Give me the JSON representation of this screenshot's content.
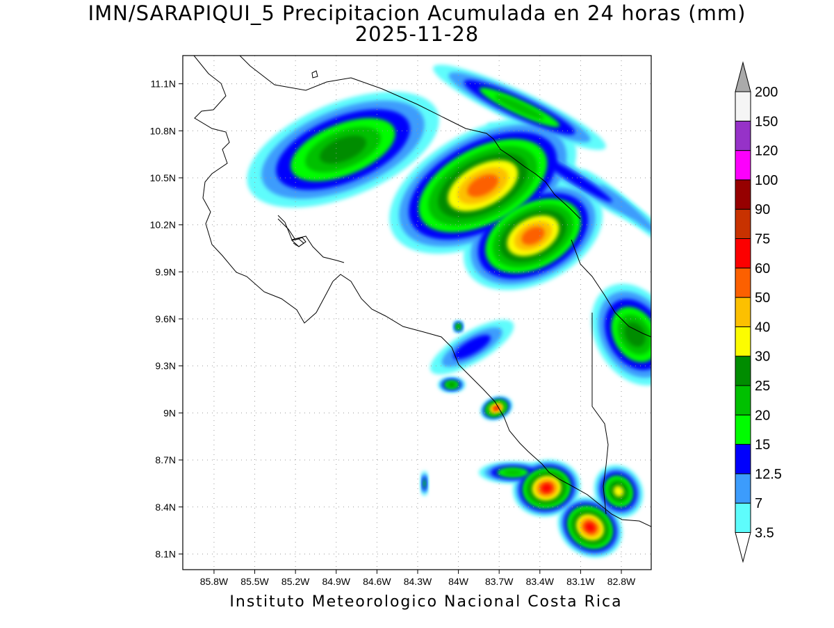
{
  "title_line1": "IMN/SARAPIQUI_5 Precipitacion Acumulada en 24 horas (mm)",
  "title_line2": "2025-11-28",
  "footer": "Instituto Meteorologico Nacional Costa Rica",
  "map": {
    "lon_range": [
      -86.03,
      -82.58
    ],
    "lat_range": [
      8.0,
      11.28
    ],
    "lon_ticks": [
      {
        "value": -85.8,
        "label": "85.8W"
      },
      {
        "value": -85.5,
        "label": "85.5W"
      },
      {
        "value": -85.2,
        "label": "85.2W"
      },
      {
        "value": -84.9,
        "label": "84.9W"
      },
      {
        "value": -84.6,
        "label": "84.6W"
      },
      {
        "value": -84.3,
        "label": "84.3W"
      },
      {
        "value": -84.0,
        "label": "84W"
      },
      {
        "value": -83.7,
        "label": "83.7W"
      },
      {
        "value": -83.4,
        "label": "83.4W"
      },
      {
        "value": -83.1,
        "label": "83.1W"
      },
      {
        "value": -82.8,
        "label": "82.8W"
      }
    ],
    "lat_ticks": [
      {
        "value": 11.1,
        "label": "11.1N"
      },
      {
        "value": 10.8,
        "label": "10.8N"
      },
      {
        "value": 10.5,
        "label": "10.5N"
      },
      {
        "value": 10.2,
        "label": "10.2N"
      },
      {
        "value": 9.9,
        "label": "9.9N"
      },
      {
        "value": 9.6,
        "label": "9.6N"
      },
      {
        "value": 9.3,
        "label": "9.3N"
      },
      {
        "value": 9.0,
        "label": "9N"
      },
      {
        "value": 8.7,
        "label": "8.7N"
      },
      {
        "value": 8.4,
        "label": "8.4N"
      },
      {
        "value": 8.1,
        "label": "8.1N"
      }
    ],
    "grid": true
  },
  "colorbar": {
    "labels": [
      "3.5",
      "7",
      "12.5",
      "15",
      "20",
      "25",
      "30",
      "40",
      "50",
      "60",
      "75",
      "90",
      "100",
      "120",
      "150",
      "200"
    ],
    "colors": [
      "#ffffff",
      "#5efcfc",
      "#3c9cfc",
      "#0000fc",
      "#00fc00",
      "#00c000",
      "#008c00",
      "#fcfc00",
      "#fcc000",
      "#fc6000",
      "#fc0000",
      "#c83200",
      "#960000",
      "#fc00fc",
      "#9632c8",
      "#f5f5f5",
      "#aaaaaa"
    ]
  },
  "precip_field": {
    "units": "mm",
    "cells": [
      {
        "lon": -83.82,
        "lat": 10.45,
        "rx": 0.75,
        "ry": 0.35,
        "rot": 28,
        "level": 9
      },
      {
        "lon": -83.45,
        "lat": 10.13,
        "rx": 0.55,
        "ry": 0.3,
        "rot": 28,
        "level": 9
      },
      {
        "lon": -84.85,
        "lat": 10.68,
        "rx": 0.75,
        "ry": 0.3,
        "rot": 22,
        "level": 6
      },
      {
        "lon": -83.55,
        "lat": 10.95,
        "rx": 0.7,
        "ry": 0.1,
        "rot": -25,
        "level": 5
      },
      {
        "lon": -83.15,
        "lat": 10.5,
        "rx": 0.75,
        "ry": 0.07,
        "rot": -32,
        "level": 3
      },
      {
        "lon": -82.75,
        "lat": 10.3,
        "rx": 0.45,
        "ry": 0.05,
        "rot": -40,
        "level": 2
      },
      {
        "lon": -82.7,
        "lat": 9.5,
        "rx": 0.4,
        "ry": 0.25,
        "rot": -60,
        "level": 6
      },
      {
        "lon": -83.9,
        "lat": 9.42,
        "rx": 0.35,
        "ry": 0.1,
        "rot": 30,
        "level": 3
      },
      {
        "lon": -83.72,
        "lat": 9.03,
        "rx": 0.12,
        "ry": 0.07,
        "rot": 20,
        "level": 10
      },
      {
        "lon": -83.35,
        "lat": 8.52,
        "rx": 0.25,
        "ry": 0.18,
        "rot": 10,
        "level": 10
      },
      {
        "lon": -83.03,
        "lat": 8.27,
        "rx": 0.25,
        "ry": 0.18,
        "rot": -35,
        "level": 10
      },
      {
        "lon": -82.82,
        "lat": 8.5,
        "rx": 0.2,
        "ry": 0.15,
        "rot": -60,
        "level": 7
      },
      {
        "lon": -83.6,
        "lat": 8.62,
        "rx": 0.25,
        "ry": 0.07,
        "rot": 0,
        "level": 5
      },
      {
        "lon": -84.05,
        "lat": 9.18,
        "rx": 0.1,
        "ry": 0.05,
        "rot": 0,
        "level": 6
      },
      {
        "lon": -84.0,
        "lat": 9.55,
        "rx": 0.04,
        "ry": 0.04,
        "rot": 0,
        "level": 6
      },
      {
        "lon": -84.25,
        "lat": 8.55,
        "rx": 0.03,
        "ry": 0.08,
        "rot": 0,
        "level": 4
      }
    ]
  }
}
